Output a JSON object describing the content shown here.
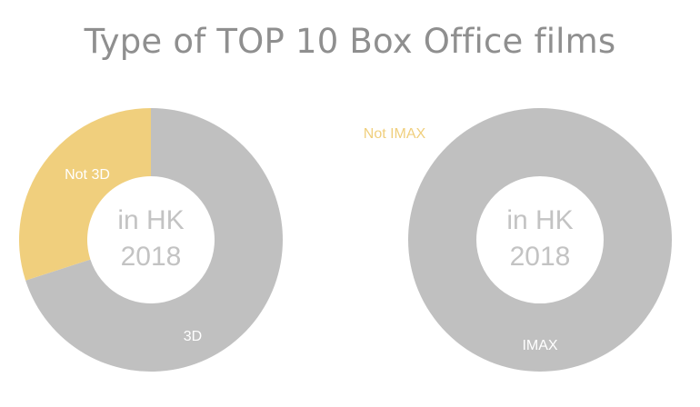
{
  "title": "Type of TOP 10 Box Office films",
  "colors": {
    "primary": "#c0c0c0",
    "secondary": "#f0cf7d",
    "center_text": "#c3c3c3",
    "background": "#ffffff"
  },
  "chart_data": [
    {
      "type": "pie",
      "donut": true,
      "center_label": [
        "in HK",
        "2018"
      ],
      "slices": [
        {
          "label": "3D",
          "value": 70,
          "color": "#c0c0c0",
          "label_color": "#ffffff"
        },
        {
          "label": "Not 3D",
          "value": 30,
          "color": "#f0cf7d",
          "label_color": "#ffffff"
        }
      ]
    },
    {
      "type": "pie",
      "donut": true,
      "center_label": [
        "in HK",
        "2018"
      ],
      "slices": [
        {
          "label": "IMAX",
          "value": 100,
          "color": "#c0c0c0",
          "label_color": "#ffffff"
        },
        {
          "label": "Not IMAX",
          "value": 0,
          "color": "#f0cf7d",
          "label_color": "#f0cf7d"
        }
      ]
    }
  ]
}
